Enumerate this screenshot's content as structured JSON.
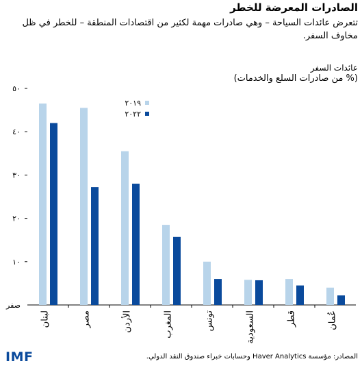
{
  "header": {
    "title": "الصادرات المعرضة للخطر",
    "subtitle": "تتعرض عائدات السياحة – وهي صادرات مهمة لكثير من اقتصادات المنطقة – للخطر في ظل مخاوف السفر.",
    "ylabel_line1": "عائدات السفر",
    "ylabel_line2": "(% من صادرات السلع والخدمات)"
  },
  "footer": {
    "source": "المصادر: مؤسسة Haver Analytics وحسابات خبراء صندوق النقد الدولي.",
    "logo": "IMF"
  },
  "colors": {
    "series_2019": "#b8d4ea",
    "series_2022": "#0a4a9c",
    "axis": "#000000"
  },
  "chart_data": {
    "type": "bar",
    "categories": [
      "لبنان",
      "مصر",
      "الأردن",
      "المغرب",
      "تونس",
      "السعودية",
      "قطر",
      "عُمان"
    ],
    "series": [
      {
        "name": "٢٠١٩",
        "values": [
          46.5,
          45.5,
          35.5,
          18.5,
          10,
          5.8,
          6,
          4
        ]
      },
      {
        "name": "٢٠٢٢",
        "values": [
          42,
          27.2,
          28,
          15.7,
          6,
          5.7,
          4.5,
          2.2
        ]
      }
    ],
    "y_ticks": [
      {
        "value": 0,
        "label": "صفر"
      },
      {
        "value": 10,
        "label": "١٠"
      },
      {
        "value": 20,
        "label": "٢٠"
      },
      {
        "value": 30,
        "label": "٣٠"
      },
      {
        "value": 40,
        "label": "٤٠"
      },
      {
        "value": 50,
        "label": "٥٠"
      }
    ],
    "ylim": [
      0,
      50
    ],
    "grid": false,
    "legend_position": "top-center"
  }
}
